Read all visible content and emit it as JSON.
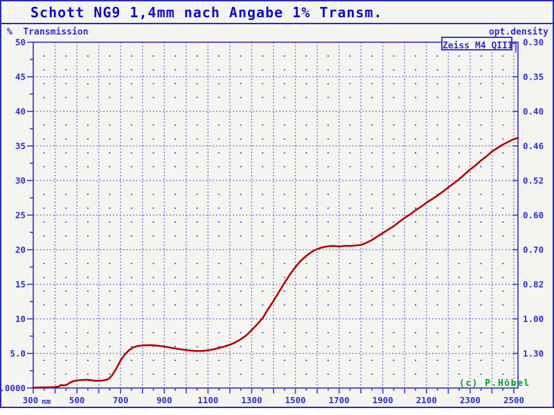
{
  "window": {
    "title": "Schott NG9 1,4mm nach Angabe 1% Transm."
  },
  "colors": {
    "title_blue": "#0d0dc8",
    "axis_blue": "#3a3ace",
    "label_blue": "#2e2ecc",
    "grid_blue": "#5c5cdf",
    "curve_red": "#b40000",
    "credit_green": "#00a030",
    "background": "#f4f4f0"
  },
  "chart_data": {
    "type": "line",
    "title": "Schott NG9 1,4mm nach Angabe 1% Transm.",
    "legend": {
      "label": "Zeiss M4 QIII",
      "position": "top-right"
    },
    "credit": "(c) P.Höbel",
    "grid": {
      "style": "dotted",
      "h_line_step_pct": 5,
      "v_line_step_nm": 100,
      "dot_rows_every_pct": 2,
      "dot_cols_every_nm": 50
    },
    "left_axis": {
      "caption": "%  Transmission",
      "range": [
        0,
        50
      ],
      "major_step": 5,
      "minor_step": 2.5,
      "ticks": [
        {
          "pct": 50,
          "label": "50"
        },
        {
          "pct": 45,
          "label": "45"
        },
        {
          "pct": 40,
          "label": "40"
        },
        {
          "pct": 35,
          "label": "35"
        },
        {
          "pct": 30,
          "label": "30"
        },
        {
          "pct": 25,
          "label": "25"
        },
        {
          "pct": 20,
          "label": "20"
        },
        {
          "pct": 15,
          "label": "15"
        },
        {
          "pct": 10,
          "label": "10"
        },
        {
          "pct": 5,
          "label": "5.0"
        },
        {
          "pct": 0,
          "label": "0.0000"
        }
      ]
    },
    "right_axis": {
      "caption": "opt.density",
      "ticks": [
        {
          "pct": 50,
          "label": "0.30"
        },
        {
          "pct": 45,
          "label": "0.35"
        },
        {
          "pct": 40,
          "label": "0.40"
        },
        {
          "pct": 35,
          "label": "0.46"
        },
        {
          "pct": 30,
          "label": "0.52"
        },
        {
          "pct": 25,
          "label": "0.60"
        },
        {
          "pct": 20,
          "label": "0.70"
        },
        {
          "pct": 15,
          "label": "0.82"
        },
        {
          "pct": 10,
          "label": "1.00"
        },
        {
          "pct": 5,
          "label": "1.30"
        }
      ]
    },
    "x_axis": {
      "unit": "nm",
      "range": [
        300,
        2519
      ],
      "major_tick_step": 100,
      "minor_tick_step": 50,
      "labels": [
        {
          "nm": 300,
          "label": "300",
          "suffix": "nm"
        },
        {
          "nm": 500,
          "label": "500"
        },
        {
          "nm": 700,
          "label": "700"
        },
        {
          "nm": 900,
          "label": "900"
        },
        {
          "nm": 1100,
          "label": "1100"
        },
        {
          "nm": 1300,
          "label": "1300"
        },
        {
          "nm": 1500,
          "label": "1500"
        },
        {
          "nm": 1700,
          "label": "1700"
        },
        {
          "nm": 1900,
          "label": "1900"
        },
        {
          "nm": 2100,
          "label": "2100"
        },
        {
          "nm": 2300,
          "label": "2300"
        },
        {
          "nm": 2500,
          "label": "2500"
        }
      ]
    },
    "series": [
      {
        "name": "Zeiss M4 QIII",
        "color": "#b40000",
        "x_unit": "nm",
        "y_unit": "% transmission",
        "points": [
          [
            300,
            0.05
          ],
          [
            330,
            0.08
          ],
          [
            360,
            0.1
          ],
          [
            390,
            0.12
          ],
          [
            415,
            0.18
          ],
          [
            428,
            0.45
          ],
          [
            440,
            0.38
          ],
          [
            455,
            0.5
          ],
          [
            470,
            0.8
          ],
          [
            485,
            1.0
          ],
          [
            500,
            1.1
          ],
          [
            520,
            1.15
          ],
          [
            545,
            1.2
          ],
          [
            565,
            1.12
          ],
          [
            585,
            1.05
          ],
          [
            605,
            1.05
          ],
          [
            625,
            1.12
          ],
          [
            645,
            1.3
          ],
          [
            660,
            1.8
          ],
          [
            680,
            2.8
          ],
          [
            700,
            4.0
          ],
          [
            720,
            4.9
          ],
          [
            740,
            5.5
          ],
          [
            760,
            5.9
          ],
          [
            780,
            6.08
          ],
          [
            800,
            6.15
          ],
          [
            825,
            6.2
          ],
          [
            850,
            6.18
          ],
          [
            875,
            6.1
          ],
          [
            900,
            6.0
          ],
          [
            925,
            5.85
          ],
          [
            950,
            5.72
          ],
          [
            975,
            5.6
          ],
          [
            1000,
            5.5
          ],
          [
            1025,
            5.4
          ],
          [
            1050,
            5.35
          ],
          [
            1075,
            5.37
          ],
          [
            1100,
            5.45
          ],
          [
            1125,
            5.6
          ],
          [
            1150,
            5.78
          ],
          [
            1175,
            6.0
          ],
          [
            1200,
            6.25
          ],
          [
            1225,
            6.6
          ],
          [
            1250,
            7.05
          ],
          [
            1275,
            7.6
          ],
          [
            1300,
            8.4
          ],
          [
            1325,
            9.2
          ],
          [
            1350,
            10.1
          ],
          [
            1375,
            11.4
          ],
          [
            1400,
            12.6
          ],
          [
            1425,
            13.9
          ],
          [
            1450,
            15.2
          ],
          [
            1475,
            16.4
          ],
          [
            1500,
            17.5
          ],
          [
            1525,
            18.4
          ],
          [
            1550,
            19.1
          ],
          [
            1575,
            19.7
          ],
          [
            1600,
            20.1
          ],
          [
            1625,
            20.35
          ],
          [
            1650,
            20.5
          ],
          [
            1675,
            20.55
          ],
          [
            1700,
            20.45
          ],
          [
            1725,
            20.55
          ],
          [
            1750,
            20.55
          ],
          [
            1775,
            20.6
          ],
          [
            1800,
            20.7
          ],
          [
            1825,
            21.0
          ],
          [
            1850,
            21.4
          ],
          [
            1875,
            21.9
          ],
          [
            1900,
            22.4
          ],
          [
            1925,
            22.9
          ],
          [
            1950,
            23.4
          ],
          [
            1975,
            24.0
          ],
          [
            2000,
            24.6
          ],
          [
            2025,
            25.1
          ],
          [
            2050,
            25.7
          ],
          [
            2075,
            26.2
          ],
          [
            2100,
            26.8
          ],
          [
            2125,
            27.3
          ],
          [
            2150,
            27.8
          ],
          [
            2175,
            28.4
          ],
          [
            2200,
            29.0
          ],
          [
            2225,
            29.6
          ],
          [
            2250,
            30.2
          ],
          [
            2275,
            30.9
          ],
          [
            2300,
            31.6
          ],
          [
            2325,
            32.2
          ],
          [
            2350,
            32.9
          ],
          [
            2375,
            33.5
          ],
          [
            2400,
            34.2
          ],
          [
            2425,
            34.7
          ],
          [
            2450,
            35.2
          ],
          [
            2475,
            35.6
          ],
          [
            2500,
            36.0
          ],
          [
            2519,
            36.15
          ]
        ]
      }
    ]
  }
}
